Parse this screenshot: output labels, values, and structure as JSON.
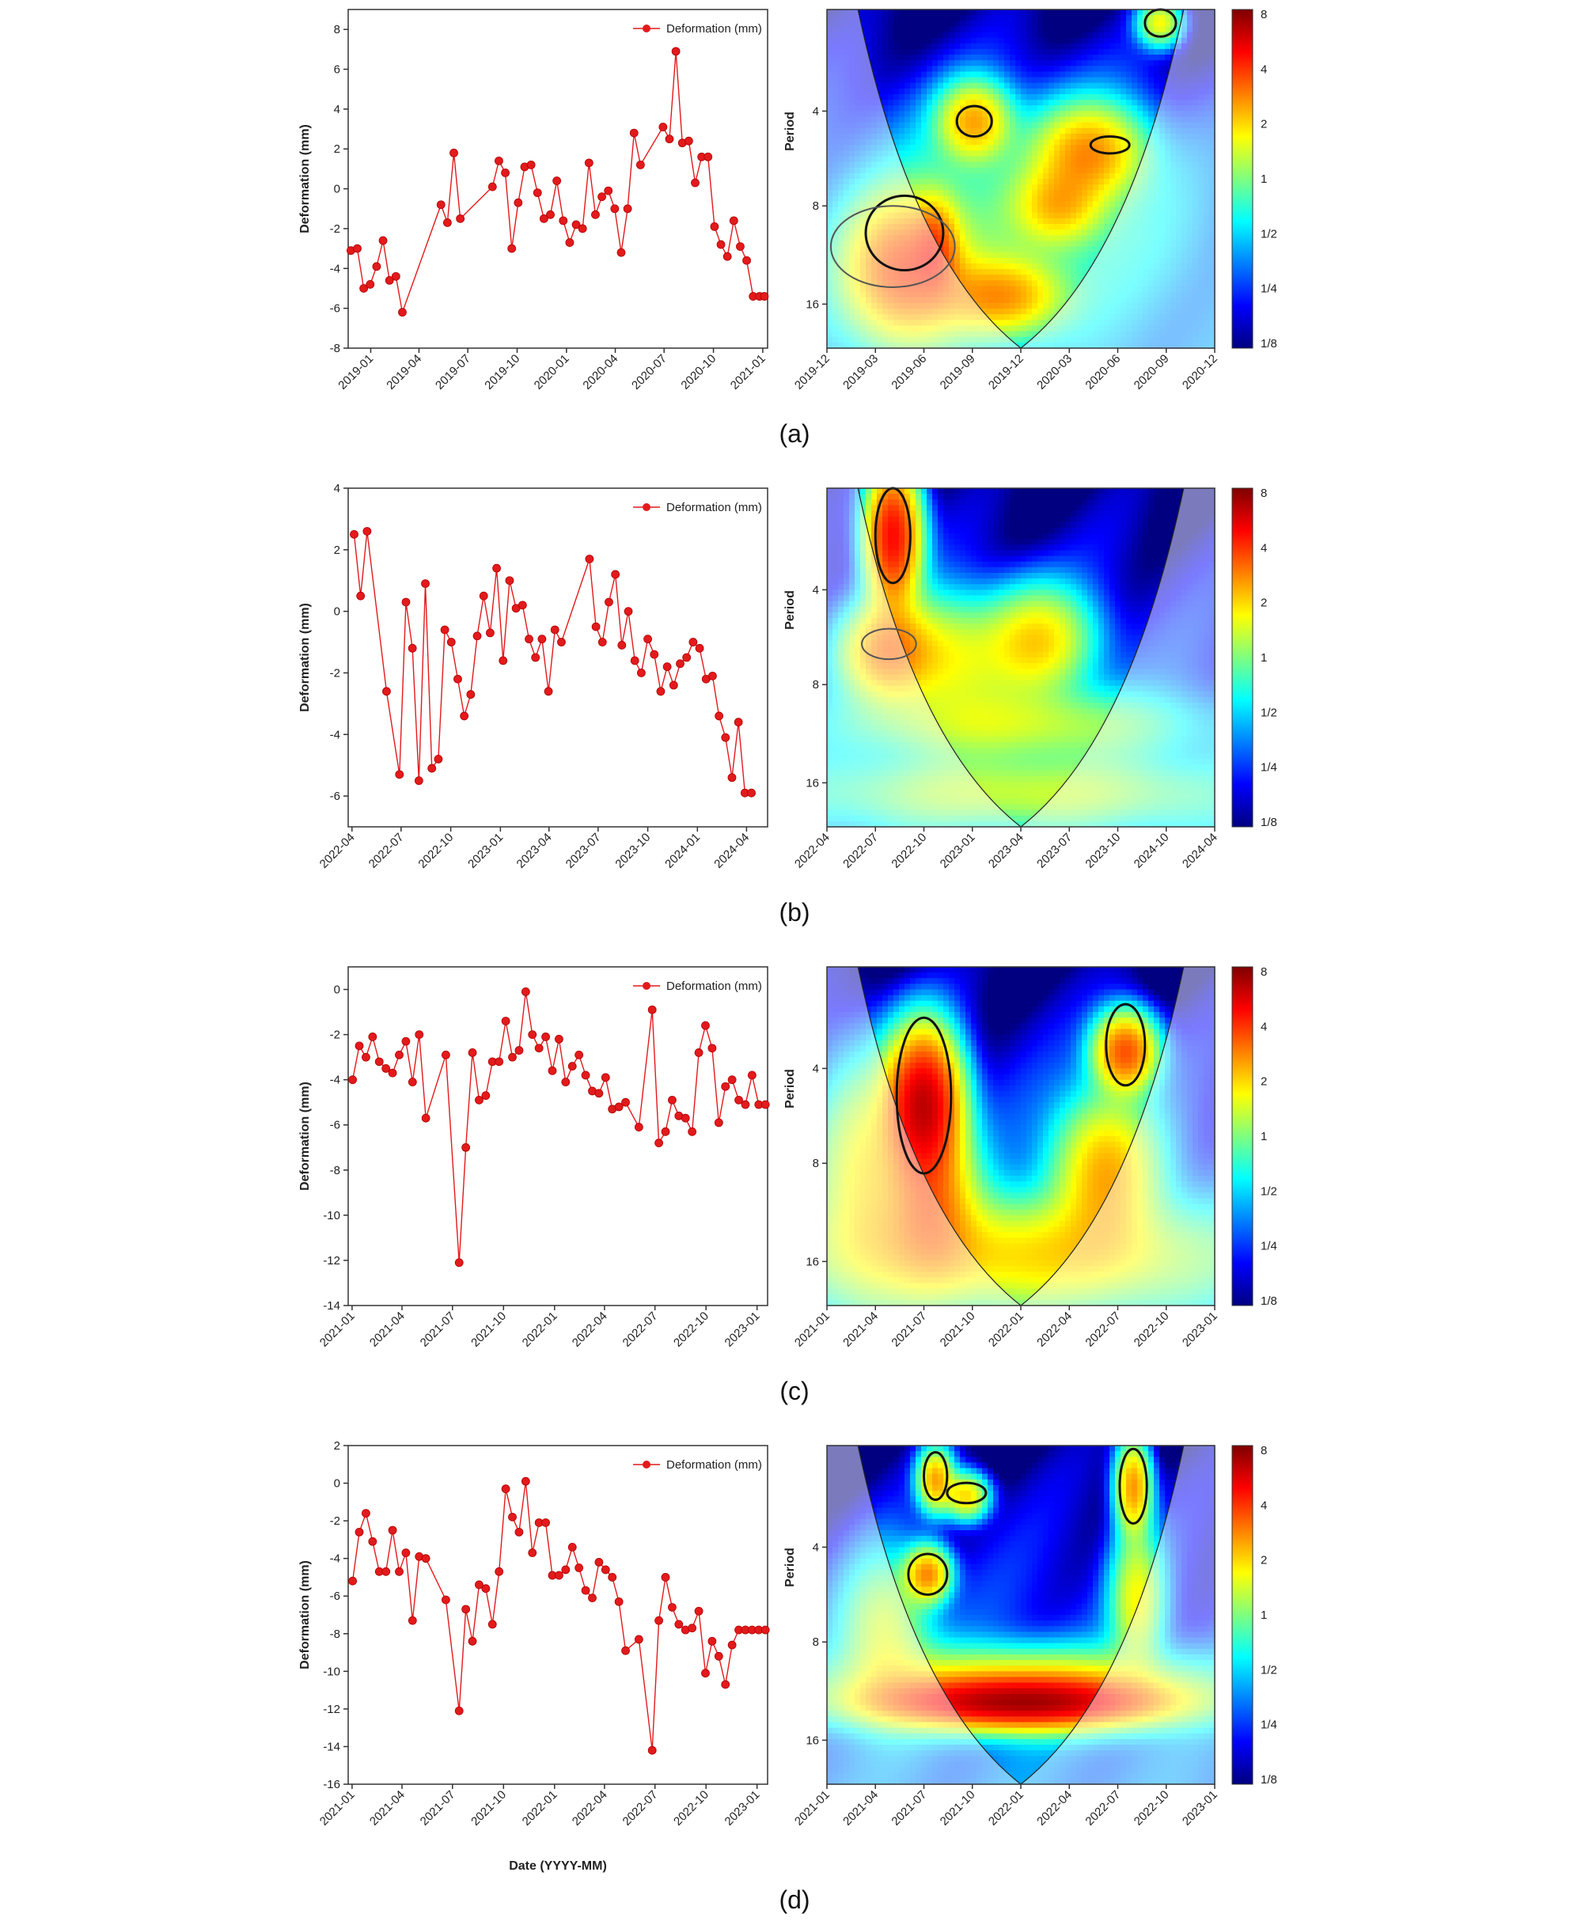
{
  "colors": {
    "series": "#e31a1c",
    "cone": "#8c8fd0",
    "colorbar": [
      "#00007f",
      "#0000ff",
      "#007fff",
      "#00ffff",
      "#7fff7f",
      "#ffff00",
      "#ff7f00",
      "#ff0000",
      "#7f0000"
    ]
  },
  "chart_data": [
    {
      "type": "line",
      "panel": "(a)",
      "legend": "Deformation (mm)",
      "legend_position": "top-right",
      "ylabel": "Deformation (mm)",
      "xlabel": "",
      "ylim": [
        -8,
        9
      ],
      "yticks": [
        "-8",
        "-6",
        "-4",
        "-2",
        "0",
        "2",
        "4",
        "6",
        "8"
      ],
      "xlim": [
        "2018-11-20",
        "2021-01-10"
      ],
      "xticks": [
        "2019-01",
        "2019-04",
        "2019-07",
        "2019-10",
        "2020-01",
        "2020-04",
        "2020-07",
        "2020-10",
        "2021-01"
      ],
      "x": [
        "2018-11-25",
        "2018-12-07",
        "2018-12-19",
        "2018-12-31",
        "2019-01-12",
        "2019-01-24",
        "2019-02-05",
        "2019-02-17",
        "2019-03-01",
        "2019-05-12",
        "2019-05-24",
        "2019-06-05",
        "2019-06-17",
        "2019-08-16",
        "2019-08-28",
        "2019-09-09",
        "2019-09-21",
        "2019-10-03",
        "2019-10-15",
        "2019-10-27",
        "2019-11-08",
        "2019-11-20",
        "2019-12-02",
        "2019-12-14",
        "2019-12-26",
        "2020-01-07",
        "2020-01-19",
        "2020-01-31",
        "2020-02-12",
        "2020-02-24",
        "2020-03-07",
        "2020-03-19",
        "2020-03-31",
        "2020-04-12",
        "2020-04-24",
        "2020-05-06",
        "2020-05-18",
        "2020-06-29",
        "2020-07-11",
        "2020-07-23",
        "2020-08-04",
        "2020-08-16",
        "2020-08-28",
        "2020-09-09",
        "2020-09-21",
        "2020-10-03",
        "2020-10-15",
        "2020-10-27",
        "2020-11-08",
        "2020-11-20",
        "2020-12-02",
        "2020-12-14",
        "2020-12-26",
        "2021-01-04"
      ],
      "values": [
        -3.1,
        -3.0,
        -5.0,
        -4.8,
        -3.9,
        -2.6,
        -4.6,
        -4.4,
        -6.2,
        -0.8,
        -1.7,
        1.8,
        -1.5,
        0.1,
        1.4,
        0.8,
        -3.0,
        -0.7,
        1.1,
        1.2,
        -0.2,
        -1.5,
        -1.3,
        0.4,
        -1.6,
        -2.7,
        -1.8,
        -2.0,
        1.3,
        -1.3,
        -0.4,
        -0.1,
        -1.0,
        -3.2,
        -1.0,
        2.8,
        1.2,
        3.1,
        2.5,
        6.9,
        2.3,
        2.4,
        0.3,
        1.6,
        1.6,
        -1.9,
        -2.8,
        -3.4,
        -1.6,
        -2.9,
        -3.6,
        -5.4,
        -5.4,
        -5.4
      ]
    },
    {
      "type": "heatmap",
      "panel": "(a)",
      "ylabel": "Period",
      "yticks": [
        "4",
        "8",
        "16"
      ],
      "xticks": [
        "2019-12",
        "2019-03",
        "2019-06",
        "2019-09",
        "2019-12",
        "2020-03",
        "2020-06",
        "2020-09",
        "2020-12"
      ],
      "colorbar_ticks": [
        "8",
        "4",
        "2",
        "1",
        "1/2",
        "1/4",
        "1/8"
      ]
    },
    {
      "type": "line",
      "panel": "(b)",
      "legend": "Deformation (mm)",
      "legend_position": "top-right",
      "ylabel": "Deformation (mm)",
      "xlabel": "",
      "ylim": [
        -7,
        4
      ],
      "yticks": [
        "-6",
        "-4",
        "-2",
        "0",
        "2",
        "4"
      ],
      "xlim": [
        "2022-03-25",
        "2024-05-10"
      ],
      "xticks": [
        "2022-04",
        "2022-07",
        "2022-10",
        "2023-01",
        "2023-04",
        "2023-07",
        "2023-10",
        "2024-01",
        "2024-04"
      ],
      "x": [
        "2022-04-05",
        "2022-04-17",
        "2022-04-29",
        "2022-06-04",
        "2022-06-28",
        "2022-07-10",
        "2022-07-22",
        "2022-08-03",
        "2022-08-15",
        "2022-08-27",
        "2022-09-08",
        "2022-09-20",
        "2022-10-02",
        "2022-10-14",
        "2022-10-26",
        "2022-11-07",
        "2022-11-19",
        "2022-12-01",
        "2022-12-13",
        "2022-12-25",
        "2023-01-06",
        "2023-01-18",
        "2023-01-30",
        "2023-02-11",
        "2023-02-23",
        "2023-03-07",
        "2023-03-19",
        "2023-03-31",
        "2023-04-12",
        "2023-04-24",
        "2023-06-15",
        "2023-06-27",
        "2023-07-09",
        "2023-07-21",
        "2023-08-02",
        "2023-08-14",
        "2023-08-26",
        "2023-09-07",
        "2023-09-19",
        "2023-10-01",
        "2023-10-13",
        "2023-10-25",
        "2023-11-06",
        "2023-11-18",
        "2023-11-30",
        "2023-12-12",
        "2023-12-24",
        "2024-01-05",
        "2024-01-17",
        "2024-01-29",
        "2024-02-10",
        "2024-02-22",
        "2024-03-05",
        "2024-03-17",
        "2024-03-29",
        "2024-04-10"
      ],
      "values": [
        2.5,
        0.5,
        2.6,
        -2.6,
        -5.3,
        0.3,
        -1.2,
        -5.5,
        0.9,
        -5.1,
        -4.8,
        -0.6,
        -1.0,
        -2.2,
        -3.4,
        -2.7,
        -0.8,
        0.5,
        -0.7,
        1.4,
        -1.6,
        1.0,
        0.1,
        0.2,
        -0.9,
        -1.5,
        -0.9,
        -2.6,
        -0.6,
        -1.0,
        1.7,
        -0.5,
        -1.0,
        0.3,
        1.2,
        -1.1,
        0.0,
        -1.6,
        -2.0,
        -0.9,
        -1.4,
        -2.6,
        -1.8,
        -2.4,
        -1.7,
        -1.5,
        -1.0,
        -1.2,
        -2.2,
        -2.1,
        -3.4,
        -4.1,
        -5.4,
        -3.6,
        -5.9,
        -5.9
      ]
    },
    {
      "type": "heatmap",
      "panel": "(b)",
      "ylabel": "Period",
      "yticks": [
        "4",
        "8",
        "16"
      ],
      "xticks": [
        "2022-04",
        "2022-07",
        "2022-10",
        "2023-01",
        "2023-04",
        "2023-07",
        "2023-10",
        "2024-10",
        "2024-04"
      ],
      "colorbar_ticks": [
        "8",
        "4",
        "2",
        "1",
        "1/2",
        "1/4",
        "1/8"
      ]
    },
    {
      "type": "line",
      "panel": "(c)",
      "legend": "Deformation (mm)",
      "legend_position": "top-right",
      "ylabel": "Deformation (mm)",
      "xlabel": "",
      "ylim": [
        -14,
        1
      ],
      "yticks": [
        "-14",
        "-12",
        "-10",
        "-8",
        "-6",
        "-4",
        "-2",
        "0"
      ],
      "xlim": [
        "2020-12-25",
        "2023-01-20"
      ],
      "xticks": [
        "2021-01",
        "2021-04",
        "2021-07",
        "2021-10",
        "2022-01",
        "2022-04",
        "2022-07",
        "2022-10",
        "2023-01"
      ],
      "x": [
        "2021-01-02",
        "2021-01-14",
        "2021-01-26",
        "2021-02-07",
        "2021-02-19",
        "2021-03-03",
        "2021-03-15",
        "2021-03-27",
        "2021-04-08",
        "2021-04-20",
        "2021-05-02",
        "2021-05-14",
        "2021-06-19",
        "2021-07-13",
        "2021-07-25",
        "2021-08-06",
        "2021-08-18",
        "2021-08-30",
        "2021-09-11",
        "2021-09-23",
        "2021-10-05",
        "2021-10-17",
        "2021-10-29",
        "2021-11-10",
        "2021-11-22",
        "2021-12-04",
        "2021-12-16",
        "2021-12-28",
        "2022-01-09",
        "2022-01-21",
        "2022-02-02",
        "2022-02-14",
        "2022-02-26",
        "2022-03-10",
        "2022-03-22",
        "2022-04-03",
        "2022-04-15",
        "2022-04-27",
        "2022-05-09",
        "2022-06-02",
        "2022-06-26",
        "2022-07-08",
        "2022-07-20",
        "2022-08-01",
        "2022-08-13",
        "2022-08-25",
        "2022-09-06",
        "2022-09-18",
        "2022-09-30",
        "2022-10-12",
        "2022-10-24",
        "2022-11-05",
        "2022-11-17",
        "2022-11-29",
        "2022-12-11",
        "2022-12-23",
        "2023-01-04",
        "2023-01-16"
      ],
      "values": [
        -4.0,
        -2.5,
        -3.0,
        -2.1,
        -3.2,
        -3.5,
        -3.7,
        -2.9,
        -2.3,
        -4.1,
        -2.0,
        -5.7,
        -2.9,
        -12.1,
        -7.0,
        -2.8,
        -4.9,
        -4.7,
        -3.2,
        -3.2,
        -1.4,
        -3.0,
        -2.7,
        -0.1,
        -2.0,
        -2.6,
        -2.1,
        -3.6,
        -2.2,
        -4.1,
        -3.4,
        -2.9,
        -3.8,
        -4.5,
        -4.6,
        -3.9,
        -5.3,
        -5.2,
        -5.0,
        -6.1,
        -0.9,
        -6.8,
        -6.3,
        -4.9,
        -5.6,
        -5.7,
        -6.3,
        -2.8,
        -1.6,
        -2.6,
        -5.9,
        -4.3,
        -4.0,
        -4.9,
        -5.1,
        -3.8,
        -5.1,
        -5.1
      ]
    },
    {
      "type": "heatmap",
      "panel": "(c)",
      "ylabel": "Period",
      "yticks": [
        "4",
        "8",
        "16"
      ],
      "xticks": [
        "2021-01",
        "2021-04",
        "2021-07",
        "2021-10",
        "2022-01",
        "2022-04",
        "2022-07",
        "2022-10",
        "2023-01"
      ],
      "colorbar_ticks": [
        "8",
        "4",
        "2",
        "1",
        "1/2",
        "1/4",
        "1/8"
      ]
    },
    {
      "type": "line",
      "panel": "(d)",
      "legend": "Deformation (mm)",
      "legend_position": "top-right",
      "ylabel": "Deformation (mm)",
      "xlabel": "Date (YYYY-MM)",
      "ylim": [
        -16,
        2
      ],
      "yticks": [
        "-16",
        "-14",
        "-12",
        "-10",
        "-8",
        "-6",
        "-4",
        "-2",
        "0",
        "2"
      ],
      "xlim": [
        "2020-12-25",
        "2023-01-20"
      ],
      "xticks": [
        "2021-01",
        "2021-04",
        "2021-07",
        "2021-10",
        "2022-01",
        "2022-04",
        "2022-07",
        "2022-10",
        "2023-01"
      ],
      "x": [
        "2021-01-02",
        "2021-01-14",
        "2021-01-26",
        "2021-02-07",
        "2021-02-19",
        "2021-03-03",
        "2021-03-15",
        "2021-03-27",
        "2021-04-08",
        "2021-04-20",
        "2021-05-02",
        "2021-05-14",
        "2021-06-19",
        "2021-07-13",
        "2021-07-25",
        "2021-08-06",
        "2021-08-18",
        "2021-08-30",
        "2021-09-11",
        "2021-09-23",
        "2021-10-05",
        "2021-10-17",
        "2021-10-29",
        "2021-11-10",
        "2021-11-22",
        "2021-12-04",
        "2021-12-16",
        "2021-12-28",
        "2022-01-09",
        "2022-01-21",
        "2022-02-02",
        "2022-02-14",
        "2022-02-26",
        "2022-03-10",
        "2022-03-22",
        "2022-04-03",
        "2022-04-15",
        "2022-04-27",
        "2022-05-09",
        "2022-06-02",
        "2022-06-26",
        "2022-07-08",
        "2022-07-20",
        "2022-08-01",
        "2022-08-13",
        "2022-08-25",
        "2022-09-06",
        "2022-09-18",
        "2022-09-30",
        "2022-10-12",
        "2022-10-24",
        "2022-11-05",
        "2022-11-17",
        "2022-11-29",
        "2022-12-11",
        "2022-12-23",
        "2023-01-04",
        "2023-01-16"
      ],
      "values": [
        -5.2,
        -2.6,
        -1.6,
        -3.1,
        -4.7,
        -4.7,
        -2.5,
        -4.7,
        -3.7,
        -7.3,
        -3.9,
        -4.0,
        -6.2,
        -12.1,
        -6.7,
        -8.4,
        -5.4,
        -5.6,
        -7.5,
        -4.7,
        -0.3,
        -1.8,
        -2.6,
        0.1,
        -3.7,
        -2.1,
        -2.1,
        -4.9,
        -4.9,
        -4.6,
        -3.4,
        -4.5,
        -5.7,
        -6.1,
        -4.2,
        -4.6,
        -5.0,
        -6.3,
        -8.9,
        -8.3,
        -14.2,
        -7.3,
        -5.0,
        -6.6,
        -7.5,
        -7.8,
        -7.7,
        -6.8,
        -10.1,
        -8.4,
        -9.2,
        -10.7,
        -8.6,
        -7.8,
        -7.8,
        -7.8,
        -7.8,
        -7.8
      ]
    },
    {
      "type": "heatmap",
      "panel": "(d)",
      "ylabel": "Period",
      "yticks": [
        "4",
        "8",
        "16"
      ],
      "xticks": [
        "2021-01",
        "2021-04",
        "2021-07",
        "2021-10",
        "2022-01",
        "2022-04",
        "2022-07",
        "2022-10",
        "2023-01"
      ],
      "colorbar_ticks": [
        "8",
        "4",
        "2",
        "1",
        "1/2",
        "1/4",
        "1/8"
      ]
    }
  ],
  "captions": [
    "(a)",
    "(b)",
    "(c)",
    "(d)"
  ]
}
